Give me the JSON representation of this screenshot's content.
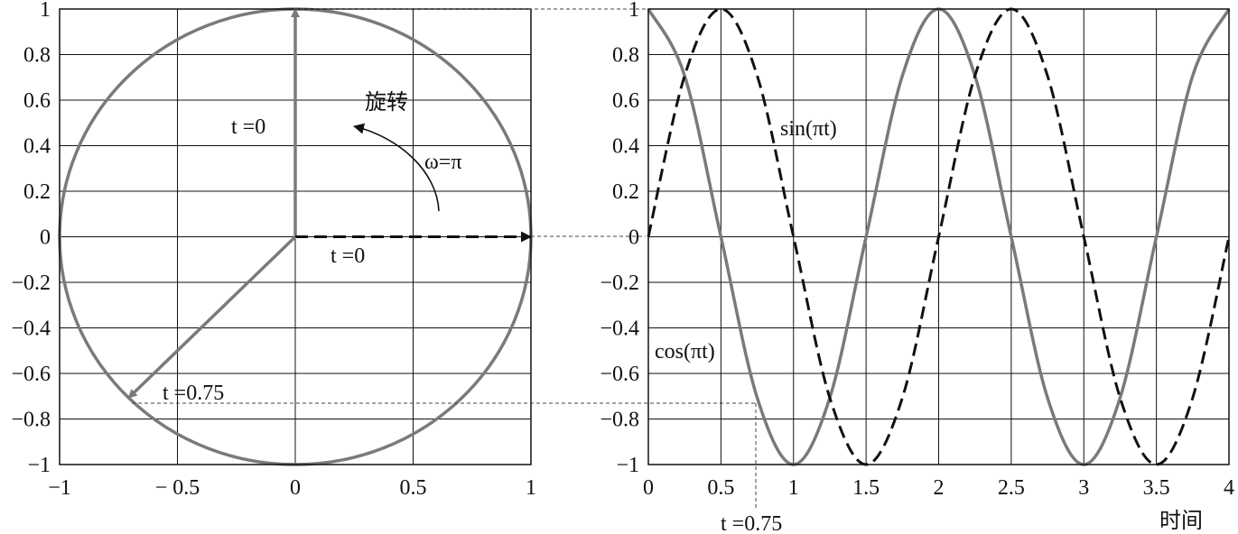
{
  "chart_data": [
    {
      "type": "line",
      "title": "",
      "xlabel": "",
      "ylabel": "",
      "xlim": [
        -1,
        1
      ],
      "ylim": [
        -1,
        1
      ],
      "grid": true,
      "x_ticks": [
        "−1",
        "− 0.5",
        "0",
        "0.5",
        "1"
      ],
      "y_ticks": [
        "1",
        "0.8",
        "0.6",
        "0.4",
        "0.2",
        "0",
        "−0.2",
        "−0.4",
        "−0.6",
        "−0.8",
        "−1"
      ],
      "circle": {
        "center": [
          0,
          0
        ],
        "radius": 1,
        "color": "#7a7a7a"
      },
      "vectors": [
        {
          "from": [
            0,
            0
          ],
          "to": [
            0,
            1
          ],
          "style": "solid",
          "color": "#7a7a7a"
        },
        {
          "from": [
            0,
            0
          ],
          "to": [
            1,
            0
          ],
          "style": "dashed",
          "color": "#111111"
        },
        {
          "from": [
            0,
            0
          ],
          "to": [
            -0.7071,
            -0.7071
          ],
          "style": "solid",
          "color": "#7a7a7a"
        }
      ],
      "annotations": {
        "vertical_t0": "t =0",
        "horizontal_t0": "t =0",
        "t075": "t =0.75",
        "rotation": "旋转",
        "omega": "ω=π"
      }
    },
    {
      "type": "line",
      "title": "",
      "xlabel": "时间",
      "ylabel": "",
      "xlim": [
        0,
        4
      ],
      "ylim": [
        -1,
        1
      ],
      "grid": true,
      "x_ticks": [
        "0",
        "0.5",
        "1",
        "1.5",
        "2",
        "2.5",
        "3",
        "3.5",
        "4"
      ],
      "y_ticks": [
        "1",
        "0.8",
        "0.6",
        "0.4",
        "0.2",
        "0",
        "−0.2",
        "−0.4",
        "−0.6",
        "−0.8",
        "−1"
      ],
      "series": [
        {
          "name": "cos(πt)",
          "style": "solid",
          "color": "#7a7a7a",
          "x": [
            0,
            0.25,
            0.5,
            0.75,
            1,
            1.25,
            1.5,
            1.75,
            2,
            2.25,
            2.5,
            2.75,
            3,
            3.25,
            3.5,
            3.75,
            4
          ],
          "y": [
            1,
            0.707,
            0,
            -0.707,
            -1,
            -0.707,
            0,
            0.707,
            1,
            0.707,
            0,
            -0.707,
            -1,
            -0.707,
            0,
            0.707,
            1
          ]
        },
        {
          "name": "sin(πt)",
          "style": "dashed",
          "color": "#111111",
          "x": [
            0,
            0.25,
            0.5,
            0.75,
            1,
            1.25,
            1.5,
            1.75,
            2,
            2.25,
            2.5,
            2.75,
            3,
            3.25,
            3.5,
            3.75,
            4
          ],
          "y": [
            0,
            0.707,
            1,
            0.707,
            0,
            -0.707,
            -1,
            -0.707,
            0,
            0.707,
            1,
            0.707,
            0,
            -0.707,
            -1,
            -0.707,
            0
          ]
        }
      ],
      "annotations": {
        "t075": "t =0.75"
      }
    }
  ]
}
